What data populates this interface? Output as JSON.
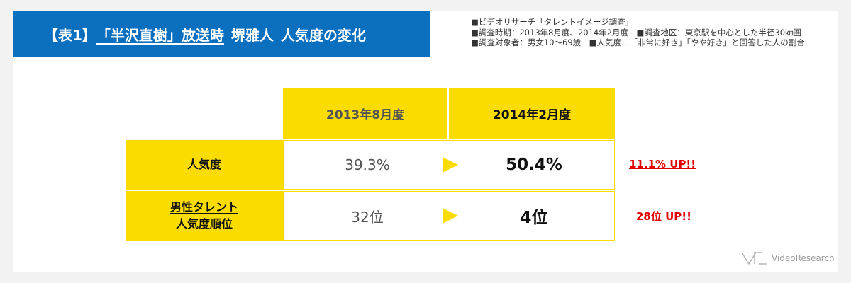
{
  "header": {
    "title_prefix": "【表1】",
    "title_drama": "「半沢直樹」放送時",
    "title_person": "堺雅人",
    "title_suffix": "人気度の変化"
  },
  "notes": [
    "■ビデオリサーチ「タレントイメージ調査」",
    "■調査時期：2013年8月度、2014年2月度　■調査地区：東京駅を中心とした半径30㎞圏",
    "■調査対象者：男女10〜69歳　■人気度…「非常に好き」「やや好き」と回答した人の割合"
  ],
  "chart_data": {
    "type": "table",
    "columns": [
      "2013年8月度",
      "2014年2月度"
    ],
    "rows": [
      {
        "label_lines": [
          "人気度"
        ],
        "values": [
          "39.3%",
          "50.4%"
        ],
        "change": "11.1% UP!!"
      },
      {
        "label_lines": [
          "男性タレント",
          "人気度順位"
        ],
        "values": [
          "32位",
          "4位"
        ],
        "change": "28位 UP!!"
      }
    ]
  },
  "logo": {
    "text": "VideoResearch"
  },
  "colors": {
    "title_bg": "#0b6fc0",
    "accent_yellow": "#fadc00",
    "up_red": "#e00000"
  }
}
